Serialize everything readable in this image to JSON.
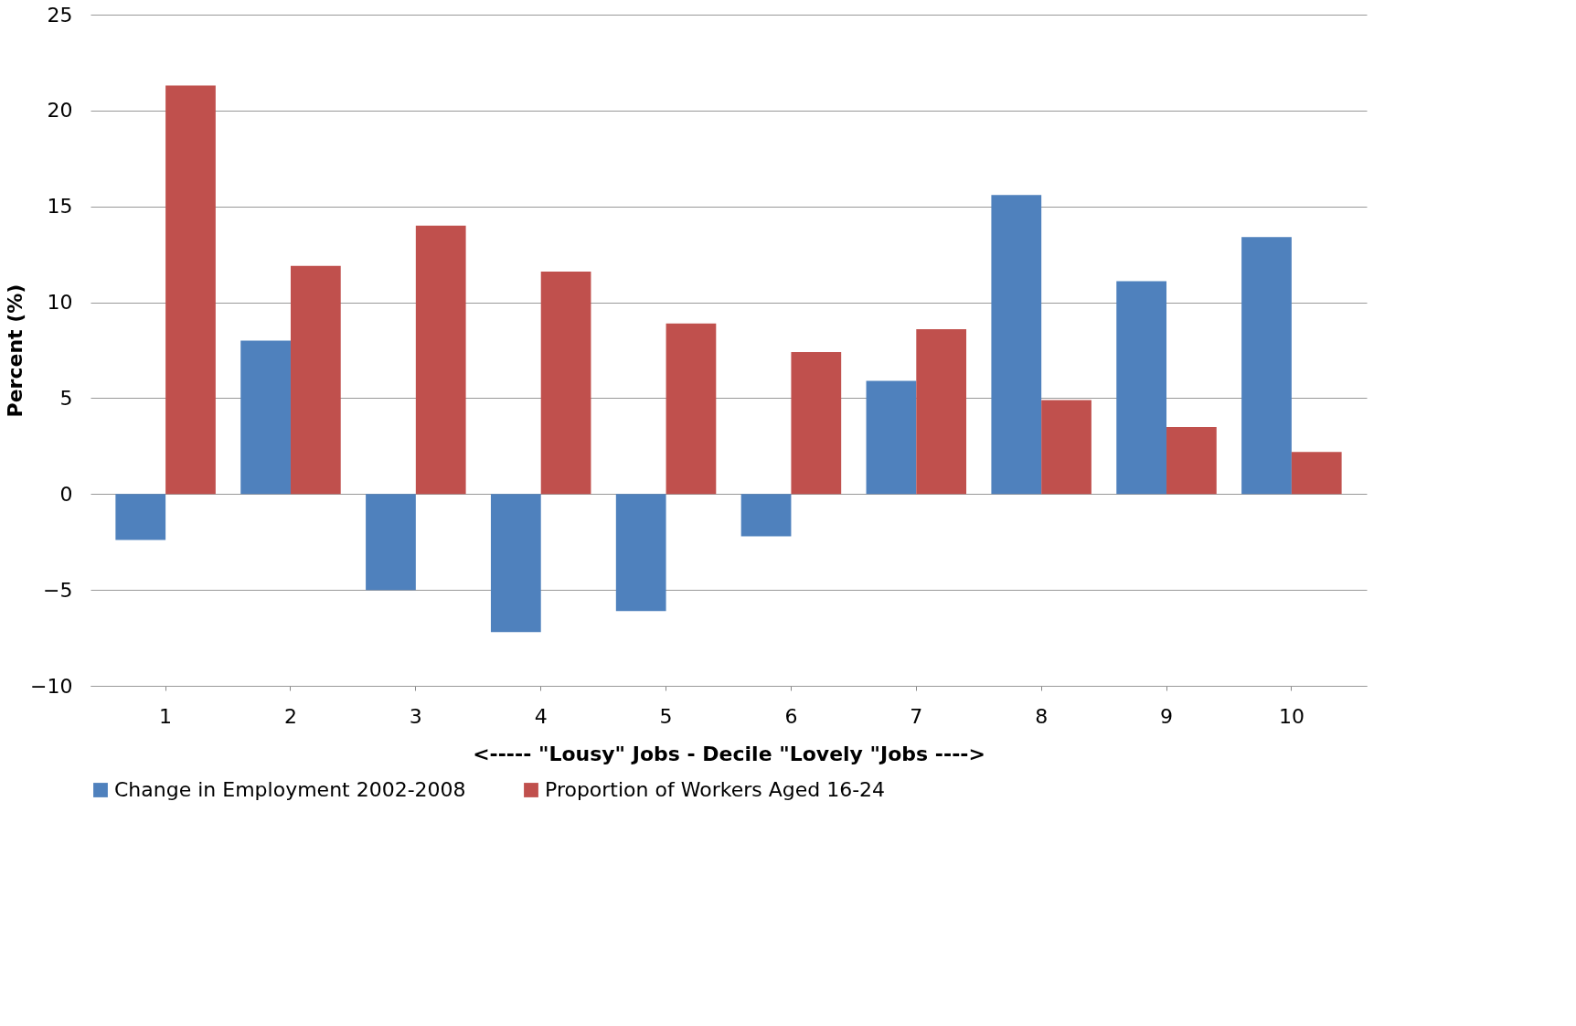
{
  "chart_data": {
    "type": "bar",
    "xlabel": "<-----  \"Lousy\" Jobs -            Decile             \"Lovely \"Jobs  ---->",
    "ylabel": "Percent (%)",
    "categories": [
      "1",
      "2",
      "3",
      "4",
      "5",
      "6",
      "7",
      "8",
      "9",
      "10"
    ],
    "series": [
      {
        "name": "Change in Employment 2002-2008",
        "color": "#4f81bd",
        "values": [
          -2.4,
          8.0,
          -5.0,
          -7.2,
          -6.1,
          -2.2,
          5.9,
          15.6,
          11.1,
          13.4
        ]
      },
      {
        "name": "Proportion of Workers Aged 16-24",
        "color": "#c0504d",
        "values": [
          21.3,
          11.9,
          14.0,
          11.6,
          8.9,
          7.4,
          8.6,
          4.9,
          3.5,
          2.2
        ]
      }
    ],
    "ylim": [
      -10,
      25
    ],
    "yticks": [
      -10,
      -5,
      0,
      5,
      10,
      15,
      20,
      25
    ],
    "grid": "y",
    "legend": "bottom"
  }
}
